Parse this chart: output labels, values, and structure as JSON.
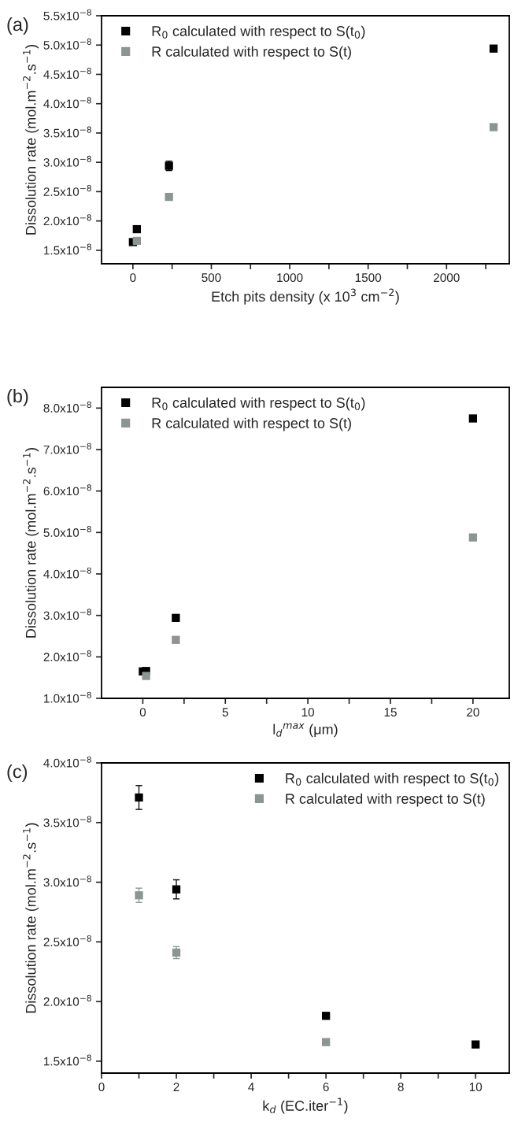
{
  "chart_data": [
    {
      "type": "scatter",
      "annotations": [
        "(a)"
      ],
      "xlabel": "Etch pits density (x 10$^{3}$ cm$^{−2}$)",
      "ylabel": "Dissolution rate (mol.m$^{−2}$.s$^{−1}$)",
      "marker": "square",
      "legend": "top left",
      "grid": false,
      "xlim": [
        -200,
        2400
      ],
      "xticks": [
        0,
        {
          "value": 250,
          "label": null
        },
        500,
        {
          "value": 750,
          "label": null
        },
        1000,
        {
          "value": 1250,
          "label": null
        },
        1500,
        {
          "value": 1750,
          "label": null
        },
        2000,
        {
          "value": 2250,
          "label": null
        }
      ],
      "ylim": [
        1.27e-08,
        5.5e-08
      ],
      "yticks": [
        {
          "value": 1.5e-08,
          "label": "1.5x10$^{−8}$"
        },
        {
          "value": 2e-08,
          "label": "2.0x10$^{−8}$"
        },
        {
          "value": 2.5e-08,
          "label": "2.5x10$^{−8}$"
        },
        {
          "value": 3e-08,
          "label": "3.0x10$^{−8}$"
        },
        {
          "value": 3.5e-08,
          "label": "3.5x10$^{−8}$"
        },
        {
          "value": 4e-08,
          "label": "4.0x10$^{−8}$"
        },
        {
          "value": 4.5e-08,
          "label": "4.5x10$^{−8}$"
        },
        {
          "value": 5e-08,
          "label": "5.0x10$^{−8}$"
        },
        {
          "value": 5.5e-08,
          "label": "5.5x10$^{−8}$"
        }
      ],
      "series": [
        {
          "name": "R$_{0}$ calculated with respect to S(t$_{0}$)",
          "color": "#000000",
          "x": [
            0,
            25,
            230,
            2300
          ],
          "values": [
            1.64e-08,
            1.86e-08,
            2.94e-08,
            4.94e-08
          ],
          "errors": [
            null,
            null,
            8e-10,
            5e-10
          ]
        },
        {
          "name": "R calculated with respect to S(t)",
          "color": "#8c9494",
          "x": [
            25,
            230,
            2300
          ],
          "values": [
            1.66e-08,
            2.41e-08,
            3.6e-08
          ]
        }
      ]
    },
    {
      "type": "scatter",
      "annotations": [
        "(b)"
      ],
      "xlabel": "l$_{d}$$^{max}$ (μm)",
      "ylabel": "Dissolution rate (mol.m$^{−2}$.s$^{−1}$)",
      "marker": "square",
      "legend": "top left",
      "grid": false,
      "xlim": [
        -2.5,
        22.2
      ],
      "xticks": [
        0,
        {
          "value": 2.5,
          "label": null
        },
        5,
        {
          "value": 7.5,
          "label": null
        },
        10,
        {
          "value": 12.5,
          "label": null
        },
        15,
        {
          "value": 17.5,
          "label": null
        },
        20
      ],
      "ylim": [
        1e-08,
        8.5e-08
      ],
      "yticks": [
        {
          "value": 1e-08,
          "label": "1.0x10$^{−8}$"
        },
        {
          "value": 2e-08,
          "label": "2.0x10$^{−8}$"
        },
        {
          "value": 3e-08,
          "label": "3.0x10$^{−8}$"
        },
        {
          "value": 4e-08,
          "label": "4.0x10$^{−8}$"
        },
        {
          "value": 5e-08,
          "label": "5.0x10$^{−8}$"
        },
        {
          "value": 6e-08,
          "label": "6.0x10$^{−8}$"
        },
        {
          "value": 7e-08,
          "label": "7.0x10$^{−8}$"
        },
        {
          "value": 8e-08,
          "label": "8.0x10$^{−8}$"
        }
      ],
      "series": [
        {
          "name": "R$_{0}$ calculated with respect to S(t$_{0}$)",
          "color": "#000000",
          "x": [
            0,
            0.2,
            2,
            20
          ],
          "values": [
            1.65e-08,
            1.66e-08,
            2.94e-08,
            7.75e-08
          ]
        },
        {
          "name": "R calculated with respect to S(t)",
          "color": "#8c9494",
          "x": [
            0.2,
            2,
            20
          ],
          "values": [
            1.54e-08,
            2.41e-08,
            4.88e-08
          ]
        }
      ]
    },
    {
      "type": "scatter",
      "annotations": [
        "(c)"
      ],
      "xlabel": "k$_{d}$ (EC.iter$^{−1}$)",
      "ylabel": "Dissolution rate (mol.m$^{−2}$.s$^{−1}$)",
      "marker": "square",
      "legend": "top right",
      "grid": false,
      "xlim": [
        0,
        10.9
      ],
      "xticks": [
        0,
        {
          "value": 1,
          "label": null
        },
        2,
        {
          "value": 3,
          "label": null
        },
        4,
        {
          "value": 5,
          "label": null
        },
        6,
        {
          "value": 7,
          "label": null
        },
        8,
        {
          "value": 9,
          "label": null
        },
        10
      ],
      "ylim": [
        1.4e-08,
        4e-08
      ],
      "yticks": [
        {
          "value": 1.5e-08,
          "label": "1.5x10$^{−8}$"
        },
        {
          "value": 2e-08,
          "label": "2.0x10$^{−8}$"
        },
        {
          "value": 2.5e-08,
          "label": "2.5x10$^{−8}$"
        },
        {
          "value": 3e-08,
          "label": "3.0x10$^{−8}$"
        },
        {
          "value": 3.5e-08,
          "label": "3.5x10$^{−8}$"
        },
        {
          "value": 4e-08,
          "label": "4.0x10$^{−8}$"
        }
      ],
      "series": [
        {
          "name": "R$_{0}$ calculated with respect to S(t$_{0}$)",
          "color": "#000000",
          "x": [
            1,
            2,
            6,
            10
          ],
          "values": [
            3.71e-08,
            2.94e-08,
            1.88e-08,
            1.64e-08
          ],
          "errors": [
            1e-09,
            8e-10,
            2e-10,
            null
          ]
        },
        {
          "name": "R calculated with respect to S(t)",
          "color": "#8c9494",
          "x": [
            1,
            2,
            6
          ],
          "values": [
            2.89e-08,
            2.41e-08,
            1.66e-08
          ],
          "errors": [
            6e-10,
            5e-10,
            null
          ]
        }
      ]
    }
  ]
}
